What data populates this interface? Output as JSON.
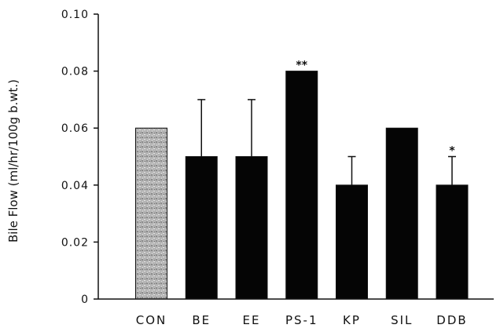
{
  "chart_data": {
    "type": "bar",
    "categories": [
      "CON",
      "BE",
      "EE",
      "PS-1",
      "KP",
      "SIL",
      "DDB"
    ],
    "values": [
      0.06,
      0.05,
      0.05,
      0.08,
      0.04,
      0.06,
      0.04
    ],
    "error_upper": [
      0.06,
      0.07,
      0.07,
      0.08,
      0.05,
      0.06,
      0.05
    ],
    "significance": [
      "",
      "",
      "",
      "**",
      "",
      "",
      "*"
    ],
    "bar_colors": [
      "#b8b8b8",
      "#050505",
      "#050505",
      "#050505",
      "#050505",
      "#050505",
      "#050505"
    ],
    "ylabel": "Bile Flow (ml/hr/100g b.wt.)",
    "ylim": [
      0,
      0.1
    ],
    "yticks": [
      0,
      0.02,
      0.04,
      0.06,
      0.08,
      0.1
    ],
    "ytick_labels": [
      "0",
      "0.02",
      "0.04",
      "0.06",
      "0.08",
      "0.10"
    ],
    "grid": false,
    "legend": "none"
  }
}
